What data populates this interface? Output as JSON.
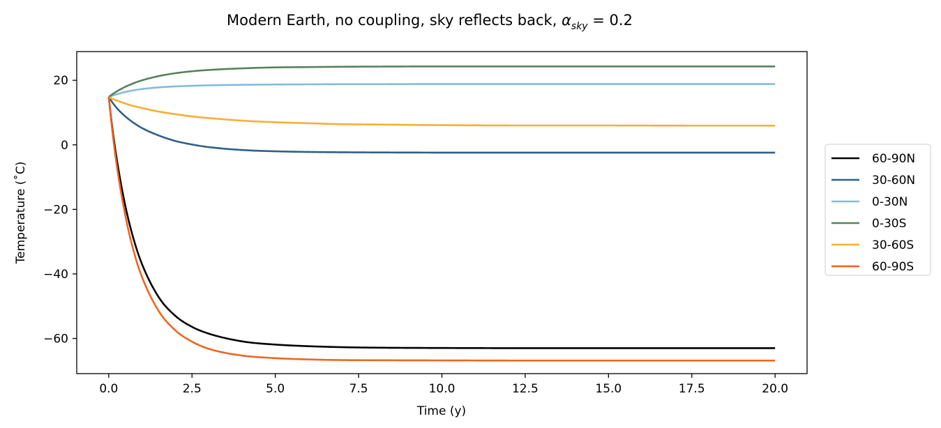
{
  "chart_data": {
    "type": "line",
    "title": {
      "main": "Modern Earth, no coupling, sky reflects back, ",
      "symbol": "α",
      "subscript": "sky",
      "suffix": " = 0.2"
    },
    "xlabel": "Time (y)",
    "ylabel": "Temperature (˚C)",
    "xlim": [
      -0.96,
      20.96
    ],
    "ylim": [
      -70.9,
      28.9
    ],
    "xticks": [
      0.0,
      2.5,
      5.0,
      7.5,
      10.0,
      12.5,
      15.0,
      17.5,
      20.0
    ],
    "xtick_labels": [
      "0.0",
      "2.5",
      "5.0",
      "7.5",
      "10.0",
      "12.5",
      "15.0",
      "17.5",
      "20.0"
    ],
    "yticks": [
      20,
      0,
      -20,
      -40,
      -60
    ],
    "ytick_labels": [
      "20",
      "0",
      "−20",
      "−40",
      "−60"
    ],
    "grid": false,
    "legend_placement": "outside-right",
    "x": [
      0,
      0.1,
      0.25,
      0.5,
      0.75,
      1,
      1.5,
      2,
      2.5,
      3,
      4,
      5,
      6,
      7,
      8,
      10,
      12.5,
      15,
      17.5,
      20
    ],
    "series": [
      {
        "name": "60-90N",
        "color": "#000000",
        "values": [
          14.8,
          5.8,
          -5.0,
          -19.0,
          -29.3,
          -37.0,
          -47.2,
          -53.0,
          -56.4,
          -58.5,
          -60.9,
          -61.9,
          -62.4,
          -62.7,
          -62.85,
          -62.95,
          -63.0,
          -63.0,
          -63.0,
          -63.0
        ]
      },
      {
        "name": "30-60N",
        "color": "#2f5f87",
        "values": [
          14.8,
          13.3,
          11.3,
          8.8,
          6.8,
          5.2,
          2.9,
          1.2,
          0.1,
          -0.7,
          -1.6,
          -2.0,
          -2.2,
          -2.3,
          -2.35,
          -2.4,
          -2.4,
          -2.4,
          -2.4,
          -2.4
        ]
      },
      {
        "name": "0-30N",
        "color": "#85bad9",
        "values": [
          14.8,
          15.2,
          15.7,
          16.4,
          16.9,
          17.3,
          17.8,
          18.1,
          18.3,
          18.45,
          18.6,
          18.7,
          18.75,
          18.8,
          18.8,
          18.85,
          18.85,
          18.85,
          18.85,
          18.85
        ]
      },
      {
        "name": "0-30S",
        "color": "#55825a",
        "values": [
          14.8,
          15.6,
          16.6,
          18.0,
          19.1,
          20.0,
          21.3,
          22.2,
          22.8,
          23.2,
          23.7,
          24.0,
          24.1,
          24.2,
          24.25,
          24.3,
          24.3,
          24.3,
          24.3,
          24.3
        ]
      },
      {
        "name": "30-60S",
        "color": "#f5ae35",
        "values": [
          14.8,
          14.3,
          13.7,
          12.8,
          12.0,
          11.4,
          10.3,
          9.5,
          8.8,
          8.3,
          7.5,
          7.0,
          6.7,
          6.4,
          6.3,
          6.1,
          6.0,
          6.0,
          5.95,
          5.95
        ]
      },
      {
        "name": "60-90S",
        "color": "#ee6520",
        "values": [
          14.8,
          5.0,
          -7.0,
          -22.0,
          -33.0,
          -41.0,
          -51.5,
          -57.5,
          -61.0,
          -63.2,
          -65.3,
          -66.1,
          -66.5,
          -66.7,
          -66.75,
          -66.8,
          -66.85,
          -66.85,
          -66.85,
          -66.85
        ]
      }
    ]
  }
}
